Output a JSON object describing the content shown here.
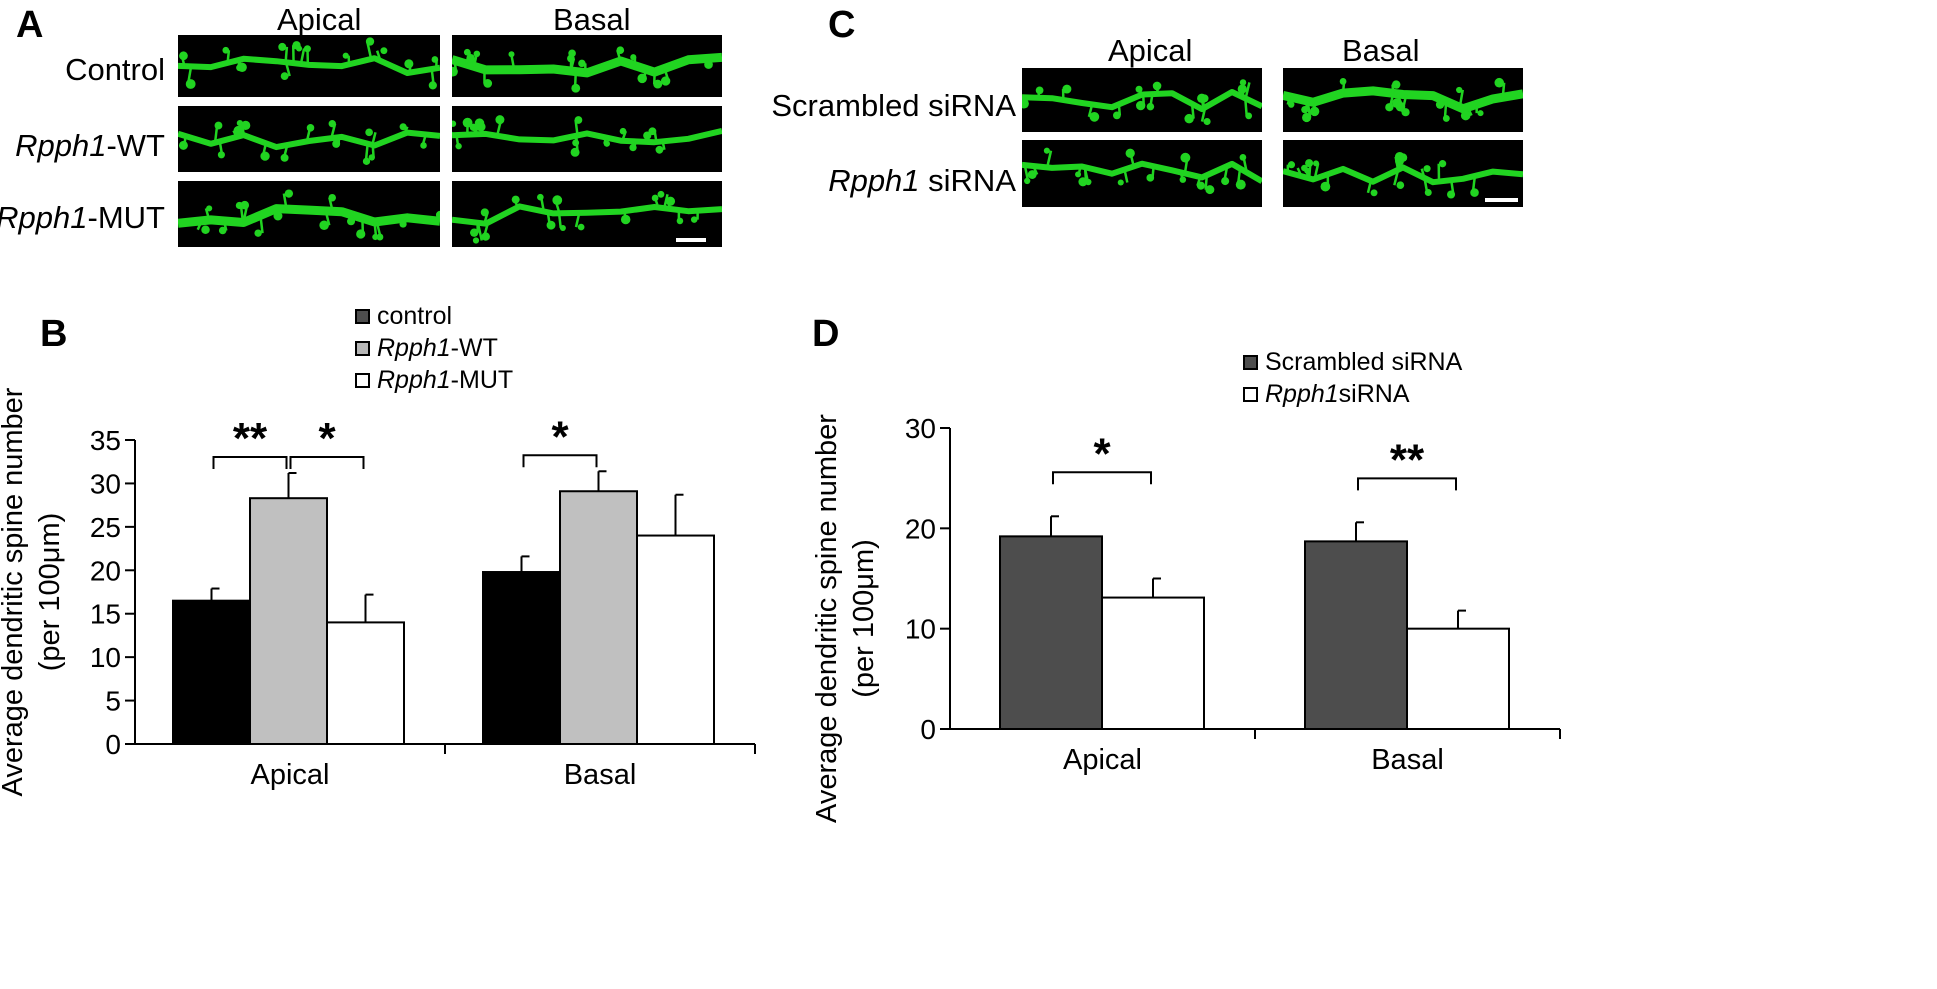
{
  "panel_labels": {
    "a": "A",
    "b": "B",
    "c": "C",
    "d": "D"
  },
  "panel_a": {
    "columns": [
      "Apical",
      "Basal"
    ],
    "rows": [
      {
        "gene": "",
        "suffix": "Control"
      },
      {
        "gene": "Rpph1",
        "suffix": "-WT"
      },
      {
        "gene": "Rpph1",
        "suffix": "-MUT"
      }
    ]
  },
  "panel_c": {
    "columns": [
      "Apical",
      "Basal"
    ],
    "rows": [
      {
        "gene": "",
        "suffix": "Scrambled siRNA"
      },
      {
        "gene": "Rpph1",
        "suffix": " siRNA"
      }
    ]
  },
  "legend_b": [
    {
      "gene": "",
      "suffix": "control",
      "color": "#4d4d4d"
    },
    {
      "gene": "Rpph1",
      "suffix": "-WT",
      "color": "#b7b7b7"
    },
    {
      "gene": "Rpph1",
      "suffix": "-MUT",
      "color": "#ffffff"
    }
  ],
  "legend_d": [
    {
      "gene": "",
      "suffix": "Scrambled siRNA",
      "color": "#4d4d4d"
    },
    {
      "gene": "Rpph1",
      "suffix": " siRNA",
      "color": "#ffffff"
    }
  ],
  "colors": {
    "microscopy_green": "#21d421",
    "background": "#000000"
  },
  "chart_data": [
    {
      "type": "bar",
      "panel": "B",
      "categories": [
        "Apical",
        "Basal"
      ],
      "ylabel_line1": "Average dendritic spine number",
      "ylabel_line2": "(per 100μm)",
      "ylim": [
        0,
        35
      ],
      "yticks": [
        0,
        5,
        10,
        15,
        20,
        25,
        30,
        35
      ],
      "series": [
        {
          "name": "control",
          "color": "#000000",
          "values": [
            16.5,
            19.8
          ],
          "errors": [
            1.4,
            1.8
          ]
        },
        {
          "name": "Rpph1-WT",
          "color": "#c0c0c0",
          "values": [
            28.3,
            29.1
          ],
          "errors": [
            2.9,
            2.3
          ]
        },
        {
          "name": "Rpph1-MUT",
          "color": "#ffffff",
          "values": [
            14.0,
            24.0
          ],
          "errors": [
            3.2,
            4.7
          ]
        }
      ],
      "significance": [
        {
          "category": 0,
          "from": 0,
          "to": 1,
          "label": "**"
        },
        {
          "category": 0,
          "from": 1,
          "to": 2,
          "label": "*"
        },
        {
          "category": 1,
          "from": 0,
          "to": 1,
          "label": "*"
        }
      ]
    },
    {
      "type": "bar",
      "panel": "D",
      "categories": [
        "Apical",
        "Basal"
      ],
      "ylabel_line1": "Average dendritic spine number",
      "ylabel_line2": "(per 100μm)",
      "ylim": [
        0,
        30
      ],
      "yticks": [
        0,
        10,
        20,
        30
      ],
      "series": [
        {
          "name": "Scrambled siRNA",
          "color": "#4d4d4d",
          "values": [
            19.2,
            18.7
          ],
          "errors": [
            2.0,
            1.9
          ]
        },
        {
          "name": "Rpph1 siRNA",
          "color": "#ffffff",
          "values": [
            13.1,
            10.0
          ],
          "errors": [
            1.9,
            1.8
          ]
        }
      ],
      "significance": [
        {
          "category": 0,
          "from": 0,
          "to": 1,
          "label": "*"
        },
        {
          "category": 1,
          "from": 0,
          "to": 1,
          "label": "**"
        }
      ]
    }
  ]
}
